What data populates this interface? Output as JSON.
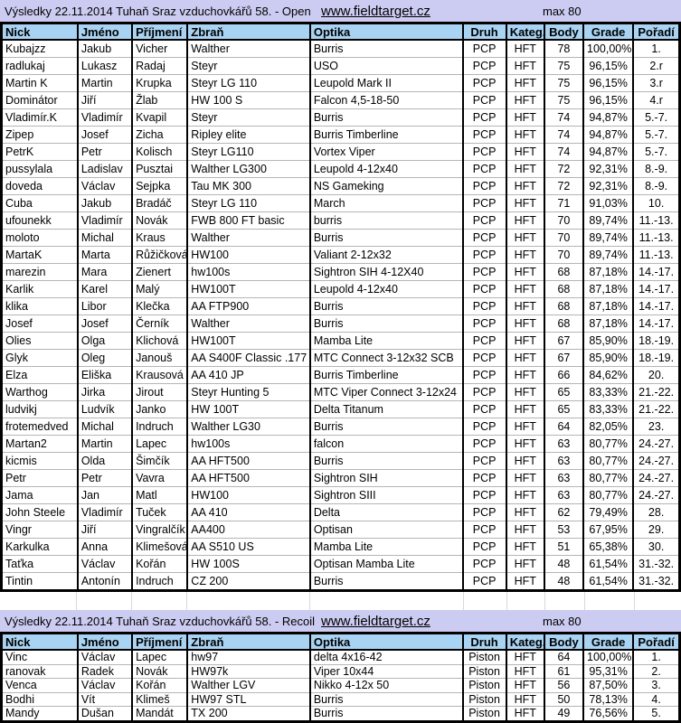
{
  "colors": {
    "title_band": "#ccccf2",
    "header_fill": "#a9d3f3"
  },
  "tables": [
    {
      "title": "Výsledky 22.11.2014 Tuhaň Sraz vzduchovkářů 58. - Open",
      "link": "www.fieldtarget.cz",
      "max_label": "max 80",
      "columns": [
        "Nick",
        "Jméno",
        "Příjmení",
        "Zbraň",
        "Optika",
        "Druh",
        "Kateg.",
        "Body",
        "Grade",
        "Pořadí"
      ],
      "rows": [
        [
          "Kubajzz",
          "Jakub",
          "Vicher",
          "Walther",
          "Burris",
          "PCP",
          "HFT",
          "78",
          "100,00%",
          "1."
        ],
        [
          "radlukaj",
          "Lukasz",
          "Radaj",
          "Steyr",
          "USO",
          "PCP",
          "HFT",
          "75",
          "96,15%",
          "2.r"
        ],
        [
          "Martin K",
          "Martin",
          "Krupka",
          "Steyr LG 110",
          "Leupold Mark II",
          "PCP",
          "HFT",
          "75",
          "96,15%",
          "3.r"
        ],
        [
          "Dominátor",
          "Jiří",
          "Žlab",
          "HW 100 S",
          "Falcon 4,5-18-50",
          "PCP",
          "HFT",
          "75",
          "96,15%",
          "4.r"
        ],
        [
          "Vladimír.K",
          "Vladimír",
          "Kvapil",
          "Steyr",
          "Burris",
          "PCP",
          "HFT",
          "74",
          "94,87%",
          "5.-7."
        ],
        [
          "Zipep",
          "Josef",
          "Zicha",
          "Ripley elite",
          "Burris Timberline",
          "PCP",
          "HFT",
          "74",
          "94,87%",
          "5.-7."
        ],
        [
          "PetrK",
          "Petr",
          "Kolisch",
          "Steyr LG110",
          "Vortex Viper",
          "PCP",
          "HFT",
          "74",
          "94,87%",
          "5.-7."
        ],
        [
          "pussylala",
          "Ladislav",
          "Pusztai",
          "Walther LG300",
          "Leupold 4-12x40",
          "PCP",
          "HFT",
          "72",
          "92,31%",
          "8.-9."
        ],
        [
          "doveda",
          "Václav",
          "Sejpka",
          "Tau MK 300",
          "NS Gameking",
          "PCP",
          "HFT",
          "72",
          "92,31%",
          "8.-9."
        ],
        [
          "Cuba",
          "Jakub",
          "Bradáč",
          "Steyr LG 110",
          "March",
          "PCP",
          "HFT",
          "71",
          "91,03%",
          "10."
        ],
        [
          "ufounekk",
          "Vladimír",
          "Novák",
          "FWB 800 FT basic",
          "burris",
          "PCP",
          "HFT",
          "70",
          "89,74%",
          "11.-13."
        ],
        [
          "moloto",
          "Michal",
          "Kraus",
          "Walther",
          "Burris",
          "PCP",
          "HFT",
          "70",
          "89,74%",
          "11.-13."
        ],
        [
          "MartaK",
          "Marta",
          "Růžičková",
          "HW100",
          "Valiant 2-12x32",
          "PCP",
          "HFT",
          "70",
          "89,74%",
          "11.-13."
        ],
        [
          "marezin",
          "Mara",
          "Zienert",
          "hw100s",
          "Sightron SIH 4-12X40",
          "PCP",
          "HFT",
          "68",
          "87,18%",
          "14.-17."
        ],
        [
          "Karlik",
          "Karel",
          "Malý",
          "HW100T",
          "Leupold 4-12x40",
          "PCP",
          "HFT",
          "68",
          "87,18%",
          "14.-17."
        ],
        [
          "klika",
          "Libor",
          "Klečka",
          "AA FTP900",
          "Burris",
          "PCP",
          "HFT",
          "68",
          "87,18%",
          "14.-17."
        ],
        [
          "Josef",
          "Josef",
          "Černík",
          "Walther",
          "Burris",
          "PCP",
          "HFT",
          "68",
          "87,18%",
          "14.-17."
        ],
        [
          "Olies",
          "Olga",
          "Klichová",
          "HW100T",
          "Mamba Lite",
          "PCP",
          "HFT",
          "67",
          "85,90%",
          "18.-19."
        ],
        [
          "Glyk",
          "Oleg",
          "Janouš",
          "AA S400F Classic .177",
          "MTC Connect 3-12x32 SCB",
          "PCP",
          "HFT",
          "67",
          "85,90%",
          "18.-19."
        ],
        [
          "Elza",
          "Eliška",
          "Krausová",
          "AA 410 JP",
          "Burris Timberline",
          "PCP",
          "HFT",
          "66",
          "84,62%",
          "20."
        ],
        [
          "Warthog",
          "Jirka",
          "Jirout",
          "Steyr Hunting 5",
          "MTC Viper Connect 3-12x24",
          "PCP",
          "HFT",
          "65",
          "83,33%",
          "21.-22."
        ],
        [
          "ludvikj",
          "Ludvík",
          "Janko",
          "HW 100T",
          "Delta Titanum",
          "PCP",
          "HFT",
          "65",
          "83,33%",
          "21.-22."
        ],
        [
          "frotemedved",
          "Michal",
          "Indruch",
          "Walther LG30",
          "Burris",
          "PCP",
          "HFT",
          "64",
          "82,05%",
          "23."
        ],
        [
          "Martan2",
          "Martin",
          "Lapec",
          "hw100s",
          "falcon",
          "PCP",
          "HFT",
          "63",
          "80,77%",
          "24.-27."
        ],
        [
          "kicmis",
          "Olda",
          "Šimčík",
          "AA HFT500",
          "Burris",
          "PCP",
          "HFT",
          "63",
          "80,77%",
          "24.-27."
        ],
        [
          "Petr",
          "Petr",
          "Vavra",
          "AA HFT500",
          "Sightron SIH",
          "PCP",
          "HFT",
          "63",
          "80,77%",
          "24.-27."
        ],
        [
          "Jama",
          "Jan",
          "Matl",
          "HW100",
          "Sightron SIII",
          "PCP",
          "HFT",
          "63",
          "80,77%",
          "24.-27."
        ],
        [
          "John Steele",
          "Vladimír",
          "Tuček",
          "AA 410",
          "Delta",
          "PCP",
          "HFT",
          "62",
          "79,49%",
          "28."
        ],
        [
          "Vingr",
          "Jiří",
          "Vingralčík",
          "AA400",
          "Optisan",
          "PCP",
          "HFT",
          "53",
          "67,95%",
          "29."
        ],
        [
          "Karkulka",
          "Anna",
          "Klimešová",
          "AA S510 US",
          "Mamba Lite",
          "PCP",
          "HFT",
          "51",
          "65,38%",
          "30."
        ],
        [
          "Taťka",
          "Václav",
          "Kořán",
          "HW 100S",
          "Optisan Mamba Lite",
          "PCP",
          "HFT",
          "48",
          "61,54%",
          "31.-32."
        ],
        [
          "Tintin",
          "Antonín",
          "Indruch",
          "CZ 200",
          "Burris",
          "PCP",
          "HFT",
          "48",
          "61,54%",
          "31.-32."
        ]
      ]
    },
    {
      "title": "Výsledky 22.11.2014 Tuhaň Sraz vzduchovkářů 58. - Recoil",
      "link": "www.fieldtarget.cz",
      "max_label": "max 80",
      "columns": [
        "Nick",
        "Jméno",
        "Příjmení",
        "Zbraň",
        "Optika",
        "Druh",
        "Kateg.",
        "Body",
        "Grade",
        "Pořadí"
      ],
      "rows": [
        [
          "Vinc",
          "Václav",
          "Lapec",
          "hw97",
          "delta 4x16-42",
          "Piston",
          "HFT",
          "64",
          "100,00%",
          "1."
        ],
        [
          "ranovak",
          "Radek",
          "Novák",
          "HW97k",
          "Viper 10x44",
          "Piston",
          "HFT",
          "61",
          "95,31%",
          "2."
        ],
        [
          "Venca",
          "Václav",
          "Kořán",
          "Walther LGV",
          "Nikko 4-12x 50",
          "Piston",
          "HFT",
          "56",
          "87,50%",
          "3."
        ],
        [
          "Bodhi",
          "Vít",
          "Klimeš",
          "HW97 STL",
          "Burris",
          "Piston",
          "HFT",
          "50",
          "78,13%",
          "4."
        ],
        [
          "Mandy",
          "Dušan",
          "Mandát",
          "TX 200",
          "Burris",
          "Piston",
          "HFT",
          "49",
          "76,56%",
          "5."
        ]
      ]
    }
  ]
}
